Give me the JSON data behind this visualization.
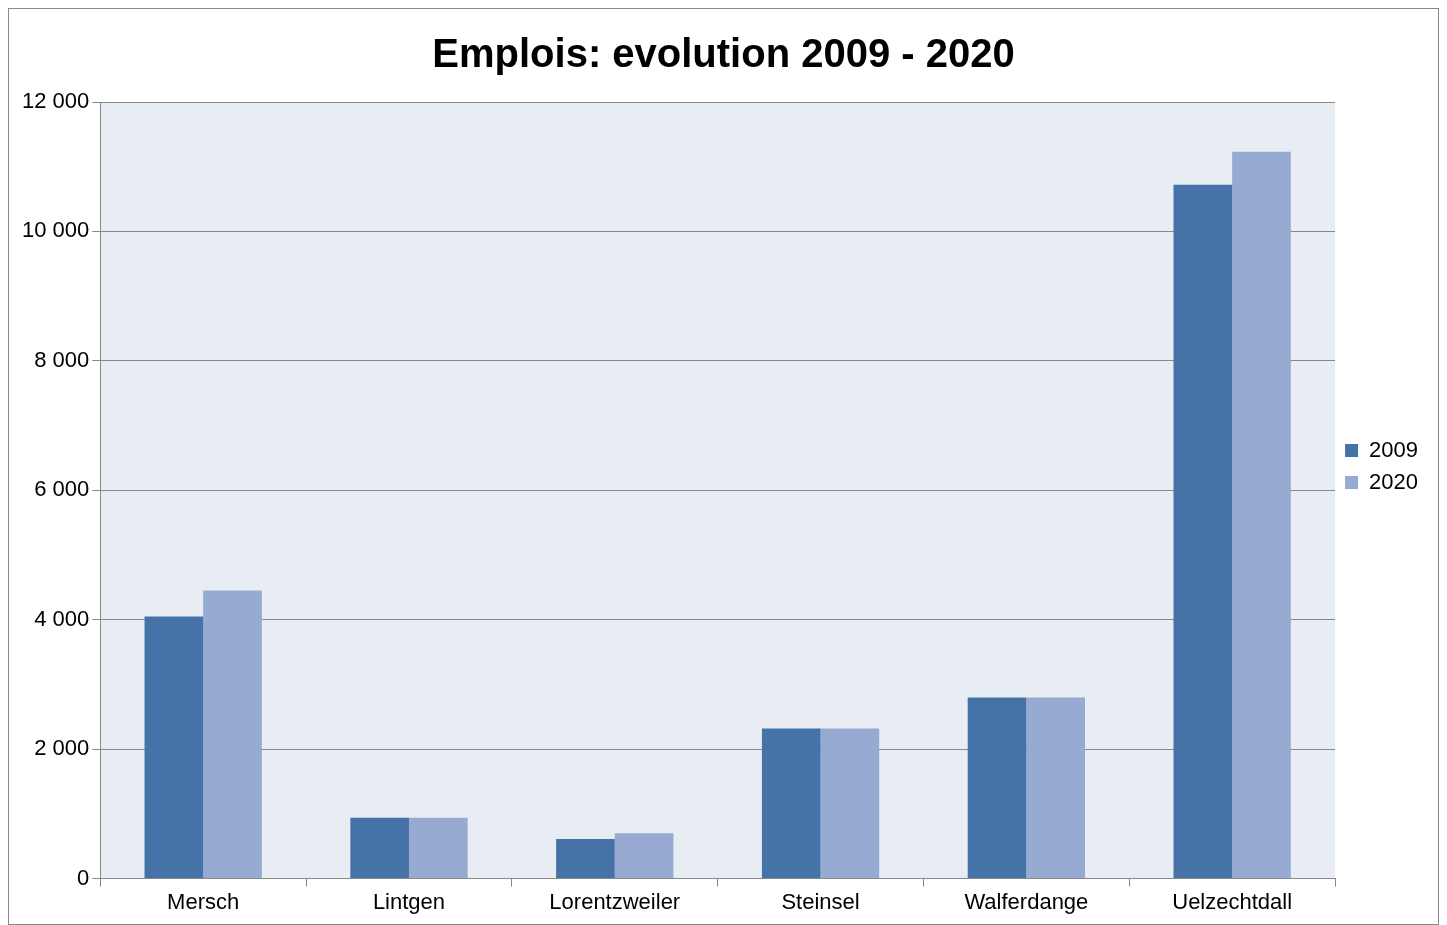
{
  "chart_data": {
    "type": "bar",
    "title": "Emplois: evolution 2009 - 2020",
    "categories": [
      "Mersch",
      "Lintgen",
      "Lorentzweiler",
      "Steinsel",
      "Walferdange",
      "Uelzechtdall"
    ],
    "series": [
      {
        "name": "2009",
        "color": "#4572a7",
        "values": [
          4050,
          940,
          610,
          2320,
          2800,
          10720
        ]
      },
      {
        "name": "2020",
        "color": "#97aad2",
        "values": [
          4450,
          940,
          700,
          2320,
          2800,
          11230
        ]
      }
    ],
    "ylim": [
      0,
      12000
    ],
    "yticks": [
      0,
      {
        "value": 2000,
        "label": "2 000"
      },
      {
        "value": 4000,
        "label": "4 000"
      },
      {
        "value": 6000,
        "label": "6 000"
      },
      {
        "value": 8000,
        "label": "8 000"
      },
      {
        "value": 10000,
        "label": "10 000"
      },
      {
        "value": 12000,
        "label": "12 000"
      }
    ],
    "grid": "y",
    "legend": "right"
  }
}
